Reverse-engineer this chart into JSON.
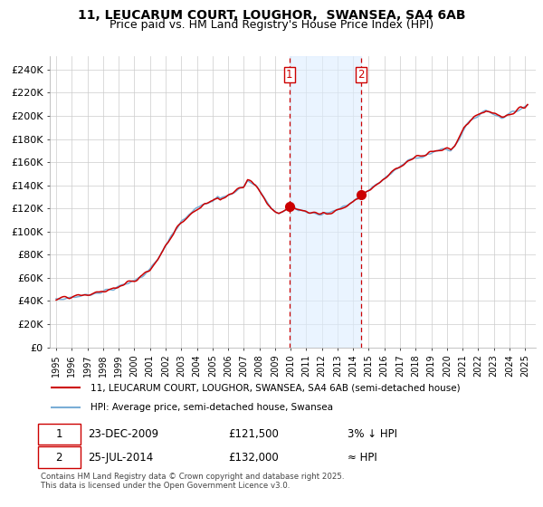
{
  "title": "11, LEUCARUM COURT, LOUGHOR,  SWANSEA, SA4 6AB",
  "subtitle": "Price paid vs. HM Land Registry's House Price Index (HPI)",
  "yticks": [
    0,
    20000,
    40000,
    60000,
    80000,
    100000,
    120000,
    140000,
    160000,
    180000,
    200000,
    220000,
    240000
  ],
  "ytick_labels": [
    "£0",
    "£20K",
    "£40K",
    "£60K",
    "£80K",
    "£100K",
    "£120K",
    "£140K",
    "£160K",
    "£180K",
    "£200K",
    "£220K",
    "£240K"
  ],
  "ylim": [
    0,
    252000
  ],
  "sale1_x": 2009.9167,
  "sale1_price": 121500,
  "sale2_x": 2014.5,
  "sale2_price": 132000,
  "hpi_line_color": "#7aaed6",
  "price_line_color": "#cc0000",
  "sale_marker_color": "#cc0000",
  "highlight_fill": "#ddeeff",
  "grid_color": "#cccccc",
  "background_color": "#ffffff",
  "legend_label_price": "11, LEUCARUM COURT, LOUGHOR, SWANSEA, SA4 6AB (semi-detached house)",
  "legend_label_hpi": "HPI: Average price, semi-detached house, Swansea",
  "footer": "Contains HM Land Registry data © Crown copyright and database right 2025.\nThis data is licensed under the Open Government Licence v3.0.",
  "title_fontsize": 10,
  "subtitle_fontsize": 9,
  "hpi_waypoints": [
    [
      1995.0,
      41000
    ],
    [
      1995.5,
      42000
    ],
    [
      1996.0,
      43500
    ],
    [
      1996.5,
      44000
    ],
    [
      1997.0,
      45500
    ],
    [
      1997.5,
      47000
    ],
    [
      1998.0,
      48500
    ],
    [
      1998.5,
      50000
    ],
    [
      1999.0,
      52000
    ],
    [
      1999.5,
      55000
    ],
    [
      2000.0,
      58000
    ],
    [
      2000.5,
      62000
    ],
    [
      2001.0,
      67000
    ],
    [
      2001.5,
      76000
    ],
    [
      2002.0,
      88000
    ],
    [
      2002.5,
      98000
    ],
    [
      2003.0,
      108000
    ],
    [
      2003.5,
      115000
    ],
    [
      2004.0,
      120000
    ],
    [
      2004.5,
      124000
    ],
    [
      2005.0,
      126000
    ],
    [
      2005.33,
      130000
    ],
    [
      2005.5,
      128000
    ],
    [
      2006.0,
      132000
    ],
    [
      2006.5,
      136000
    ],
    [
      2007.0,
      140000
    ],
    [
      2007.25,
      145000
    ],
    [
      2007.5,
      143000
    ],
    [
      2007.75,
      140000
    ],
    [
      2008.0,
      135000
    ],
    [
      2008.25,
      130000
    ],
    [
      2008.5,
      125000
    ],
    [
      2008.75,
      120000
    ],
    [
      2009.0,
      118000
    ],
    [
      2009.25,
      116000
    ],
    [
      2009.5,
      117000
    ],
    [
      2009.75,
      119000
    ],
    [
      2009.917,
      121000
    ],
    [
      2010.0,
      122000
    ],
    [
      2010.25,
      121000
    ],
    [
      2010.5,
      119000
    ],
    [
      2010.75,
      118000
    ],
    [
      2011.0,
      117000
    ],
    [
      2011.5,
      116000
    ],
    [
      2012.0,
      115000
    ],
    [
      2012.5,
      117000
    ],
    [
      2013.0,
      119000
    ],
    [
      2013.5,
      122000
    ],
    [
      2014.0,
      126000
    ],
    [
      2014.5,
      131000
    ],
    [
      2015.0,
      136000
    ],
    [
      2015.5,
      141000
    ],
    [
      2016.0,
      146000
    ],
    [
      2016.5,
      151000
    ],
    [
      2017.0,
      156000
    ],
    [
      2017.5,
      161000
    ],
    [
      2018.0,
      164000
    ],
    [
      2018.5,
      166000
    ],
    [
      2019.0,
      168000
    ],
    [
      2019.5,
      170000
    ],
    [
      2020.0,
      171000
    ],
    [
      2020.25,
      170000
    ],
    [
      2020.5,
      174000
    ],
    [
      2020.75,
      180000
    ],
    [
      2021.0,
      186000
    ],
    [
      2021.25,
      192000
    ],
    [
      2021.5,
      196000
    ],
    [
      2021.75,
      198000
    ],
    [
      2022.0,
      200000
    ],
    [
      2022.25,
      203000
    ],
    [
      2022.5,
      205000
    ],
    [
      2022.75,
      204000
    ],
    [
      2023.0,
      202000
    ],
    [
      2023.25,
      200000
    ],
    [
      2023.5,
      199000
    ],
    [
      2023.75,
      200000
    ],
    [
      2024.0,
      201000
    ],
    [
      2024.25,
      203000
    ],
    [
      2024.5,
      205000
    ],
    [
      2024.75,
      207000
    ],
    [
      2025.0,
      208000
    ],
    [
      2025.25,
      210000
    ]
  ]
}
